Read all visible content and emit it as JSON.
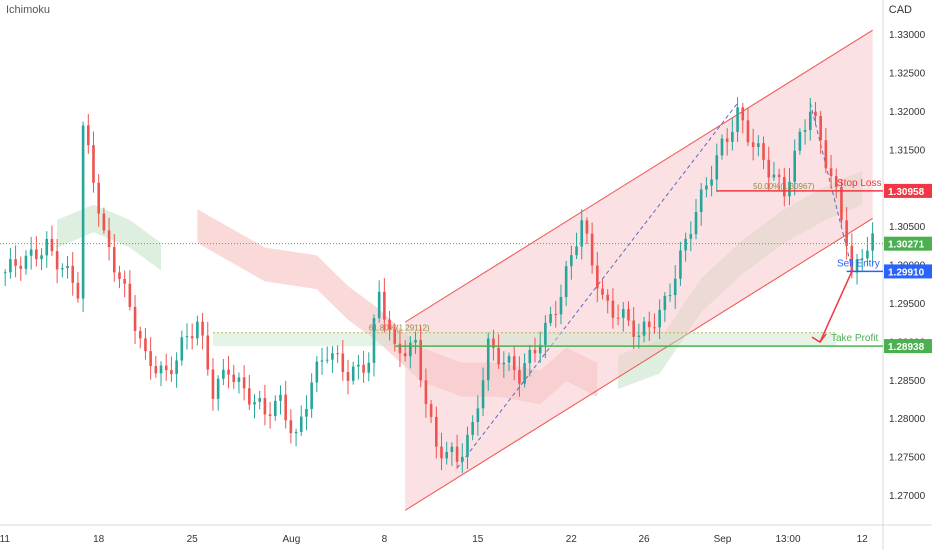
{
  "indicator": "Ichimoku",
  "currency": "CAD",
  "colors": {
    "up": "#26a69a",
    "down": "#ef5350",
    "channel_fill": "#f8c8cc",
    "channel_line": "#ef5350",
    "cloud_bear": "#f9d2d2",
    "cloud_bull": "#d8ecd9",
    "stop": "#f23645",
    "entry": "#2962ff",
    "target": "#4caf50",
    "last": "#4caf50"
  },
  "chart_data": {
    "type": "candlestick",
    "y_min": 1.266,
    "y_max": 1.3345,
    "y_ticks": [
      "1.33000",
      "1.32500",
      "1.32000",
      "1.31500",
      "1.31000",
      "1.30500",
      "1.30000",
      "1.29500",
      "1.29000",
      "1.28500",
      "1.28000",
      "1.27500",
      "1.27000"
    ],
    "x_ticks": [
      {
        "label": "11",
        "i": 0
      },
      {
        "label": "18",
        "i": 18
      },
      {
        "label": "25",
        "i": 36
      },
      {
        "label": "Aug",
        "i": 55
      },
      {
        "label": "8",
        "i": 73
      },
      {
        "label": "15",
        "i": 91
      },
      {
        "label": "22",
        "i": 109
      },
      {
        "label": "26",
        "i": 123
      },
      {
        "label": "Sep",
        "i": 138
      },
      {
        "label": "13:00",
        "i": 151
      },
      {
        "label": "12",
        "i": 165
      }
    ],
    "candle_count": 168,
    "price_anchors": [
      [
        0,
        1.299
      ],
      [
        4,
        1.3
      ],
      [
        8,
        1.303
      ],
      [
        11,
        1.3
      ],
      [
        14,
        1.296
      ],
      [
        15,
        1.317
      ],
      [
        17,
        1.311
      ],
      [
        19,
        1.304
      ],
      [
        22,
        1.299
      ],
      [
        25,
        1.292
      ],
      [
        27,
        1.287
      ],
      [
        31,
        1.286
      ],
      [
        34,
        1.29
      ],
      [
        37,
        1.292
      ],
      [
        40,
        1.283
      ],
      [
        43,
        1.287
      ],
      [
        47,
        1.283
      ],
      [
        50,
        1.28
      ],
      [
        53,
        1.282
      ],
      [
        56,
        1.278
      ],
      [
        59,
        1.285
      ],
      [
        62,
        1.288
      ],
      [
        66,
        1.286
      ],
      [
        70,
        1.288
      ],
      [
        72,
        1.296
      ],
      [
        75,
        1.288
      ],
      [
        79,
        1.29
      ],
      [
        83,
        1.276
      ],
      [
        87,
        1.274
      ],
      [
        90,
        1.279
      ],
      [
        93,
        1.29
      ],
      [
        96,
        1.287
      ],
      [
        99,
        1.285
      ],
      [
        103,
        1.291
      ],
      [
        107,
        1.296
      ],
      [
        111,
        1.305
      ],
      [
        115,
        1.296
      ],
      [
        119,
        1.293
      ],
      [
        122,
        1.29
      ],
      [
        126,
        1.294
      ],
      [
        130,
        1.301
      ],
      [
        134,
        1.308
      ],
      [
        138,
        1.316
      ],
      [
        141,
        1.32
      ],
      [
        144,
        1.315
      ],
      [
        147,
        1.312
      ],
      [
        150,
        1.31
      ],
      [
        153,
        1.317
      ],
      [
        155,
        1.32
      ],
      [
        158,
        1.313
      ],
      [
        160,
        1.309
      ],
      [
        162,
        1.304
      ],
      [
        163,
        1.299
      ],
      [
        165,
        1.302
      ],
      [
        167,
        1.3027
      ]
    ],
    "cloud": {
      "bear": [
        [
          37,
          1.305
        ],
        [
          50,
          1.3
        ],
        [
          60,
          1.299
        ],
        [
          66,
          1.295
        ],
        [
          72,
          1.292
        ],
        [
          80,
          1.287
        ],
        [
          88,
          1.285
        ],
        [
          95,
          1.285
        ],
        [
          103,
          1.284
        ],
        [
          108,
          1.287
        ],
        [
          114,
          1.285
        ]
      ],
      "bull": [
        [
          10,
          1.304
        ],
        [
          17,
          1.306
        ],
        [
          24,
          1.304
        ],
        [
          30,
          1.301
        ],
        [
          118,
          1.286
        ],
        [
          126,
          1.288
        ],
        [
          134,
          1.296
        ],
        [
          142,
          1.301
        ],
        [
          150,
          1.305
        ],
        [
          158,
          1.308
        ],
        [
          165,
          1.31
        ]
      ]
    },
    "channel": {
      "upper_start": {
        "i": 77,
        "p": 1.2925
      },
      "upper_end": {
        "i": 167,
        "p": 1.3305
      },
      "lower_start": {
        "i": 77,
        "p": 1.268
      },
      "lower_end": {
        "i": 167,
        "p": 1.306
      }
    },
    "levels": {
      "stop_loss": {
        "label": "Stop Loss",
        "value": "1.30958",
        "price": 1.30958
      },
      "sell_entry": {
        "label": "Sell Entry",
        "value": "1.29910",
        "price": 1.2991
      },
      "take_profit": {
        "label": "Take Profit",
        "value": "1.28938",
        "price": 1.28938
      },
      "last_price": {
        "value": "1.30271",
        "price": 1.30271
      }
    },
    "fib_upper": {
      "label": "61.80%(1.29112)",
      "price": 1.29112
    },
    "fib_stop": {
      "label": "50.00%(1.30967)",
      "price": 1.30967
    }
  }
}
